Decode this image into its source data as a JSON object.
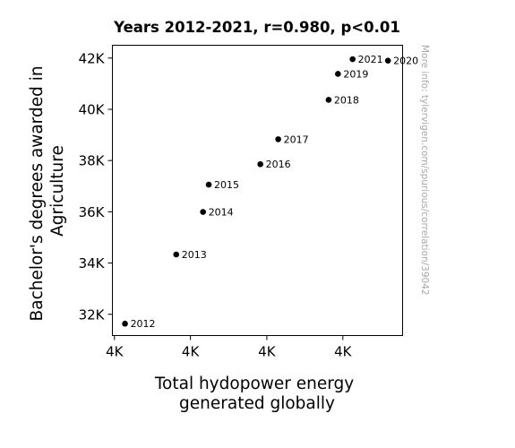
{
  "chart_data": {
    "type": "scatter",
    "title": "Years 2012-2021, r=0.980, p<0.01",
    "xlabel_lines": [
      "Total hydopower energy",
      "generated globally"
    ],
    "ylabel_lines": [
      "Bachelor's degrees awarded in",
      "Agriculture"
    ],
    "xlim": [
      3620,
      4334
    ],
    "ylim": [
      31170,
      42500
    ],
    "x_ticks": [
      {
        "value": 3625,
        "label": "4K"
      },
      {
        "value": 3812,
        "label": "4K"
      },
      {
        "value": 4000,
        "label": "4K"
      },
      {
        "value": 4187,
        "label": "4K"
      }
    ],
    "y_ticks": [
      {
        "value": 32000,
        "label": "32K"
      },
      {
        "value": 34000,
        "label": "34K"
      },
      {
        "value": 36000,
        "label": "36K"
      },
      {
        "value": 38000,
        "label": "38K"
      },
      {
        "value": 40000,
        "label": "40K"
      },
      {
        "value": 42000,
        "label": "42K"
      }
    ],
    "points": [
      {
        "x": 3651,
        "y": 31634,
        "label": "2012"
      },
      {
        "x": 3777,
        "y": 34335,
        "label": "2013"
      },
      {
        "x": 3843,
        "y": 35995,
        "label": "2014"
      },
      {
        "x": 3857,
        "y": 37060,
        "label": "2015"
      },
      {
        "x": 3984,
        "y": 37858,
        "label": "2016"
      },
      {
        "x": 4028,
        "y": 38832,
        "label": "2017"
      },
      {
        "x": 4152,
        "y": 40368,
        "label": "2018"
      },
      {
        "x": 4175,
        "y": 41382,
        "label": "2019"
      },
      {
        "x": 4298,
        "y": 41898,
        "label": "2020"
      },
      {
        "x": 4211,
        "y": 41957,
        "label": "2021"
      }
    ],
    "grid": false,
    "marker_color": "#000000"
  },
  "watermark": "More info: tylervigen.com/spurious/correlation/39042"
}
